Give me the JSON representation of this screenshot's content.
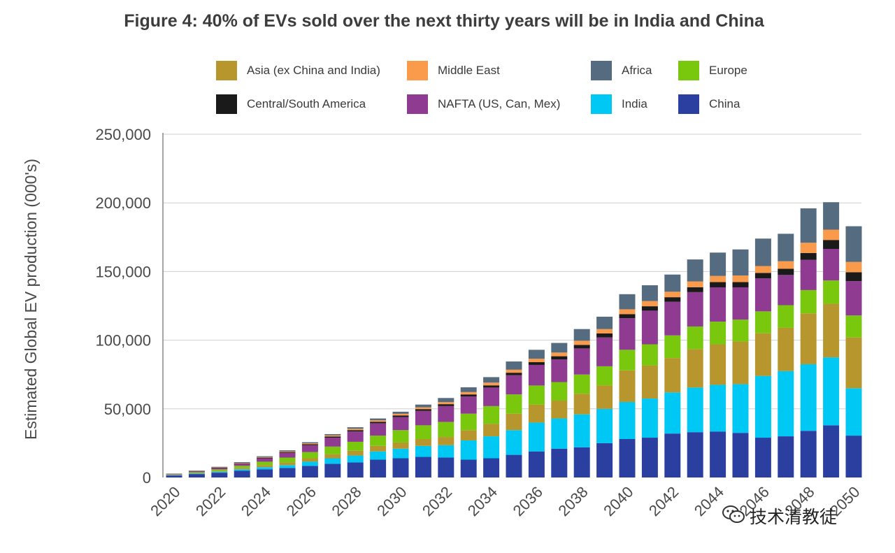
{
  "chart_data": {
    "type": "bar",
    "stacked": true,
    "title": "Figure 4: 40% of EVs sold over the next thirty years will be in India and China",
    "ylabel": "Estimated Global EV production (000's)",
    "xlabel": "",
    "ylim": [
      0,
      250000
    ],
    "yticks": [
      "0",
      "50,000",
      "100,000",
      "150,000",
      "200,000",
      "250,000"
    ],
    "grid": true,
    "legend_position": "top",
    "xtick_labels": [
      "2020",
      "2022",
      "2024",
      "2026",
      "2028",
      "2030",
      "2032",
      "2034",
      "2036",
      "2038",
      "2040",
      "2042",
      "2044",
      "2046",
      "2048",
      "2050"
    ],
    "categories": [
      "2020",
      "2021",
      "2022",
      "2023",
      "2024",
      "2025",
      "2026",
      "2027",
      "2028",
      "2029",
      "2030",
      "2031",
      "2032",
      "2033",
      "2034",
      "2035",
      "2036",
      "2037",
      "2038",
      "2039",
      "2040",
      "2041",
      "2042",
      "2043",
      "2044",
      "2045",
      "2046",
      "2047",
      "2048",
      "2049",
      "2050"
    ],
    "series": [
      {
        "name": "China",
        "color": "#2b3fa0",
        "values": [
          1500,
          2500,
          3500,
          5000,
          6000,
          7000,
          8500,
          10000,
          11000,
          13000,
          14000,
          15000,
          14500,
          13000,
          14000,
          16500,
          19000,
          21000,
          22000,
          25000,
          28000,
          29000,
          32000,
          33000,
          33500,
          32500,
          29000,
          30000,
          34000,
          38000,
          30500
        ]
      },
      {
        "name": "India",
        "color": "#00c8f5",
        "values": [
          200,
          400,
          700,
          1000,
          1500,
          2000,
          3000,
          4000,
          5000,
          6000,
          7000,
          8000,
          9000,
          14000,
          16000,
          18000,
          21000,
          22000,
          24000,
          25000,
          27000,
          28500,
          30000,
          32500,
          34000,
          35500,
          45000,
          47500,
          48500,
          49500,
          34500
        ]
      },
      {
        "name": "Asia (ex China and India)",
        "color": "#b8962e",
        "values": [
          200,
          400,
          700,
          1000,
          1500,
          2000,
          2500,
          3000,
          3500,
          4000,
          4500,
          5000,
          6000,
          7500,
          9000,
          12000,
          13000,
          13000,
          15000,
          17000,
          23000,
          24000,
          25000,
          28000,
          29500,
          31000,
          31000,
          31500,
          37000,
          39000,
          37000
        ]
      },
      {
        "name": "Europe",
        "color": "#79c80e",
        "values": [
          300,
          600,
          1000,
          1500,
          2500,
          3500,
          4500,
          5500,
          6500,
          7500,
          9000,
          10000,
          11000,
          12000,
          13000,
          14000,
          14000,
          13500,
          14000,
          14000,
          15000,
          15500,
          16500,
          16500,
          16500,
          16000,
          16000,
          16500,
          17000,
          17000,
          16000
        ]
      },
      {
        "name": "NAFTA (US, Can, Mex)",
        "color": "#8e3b91",
        "values": [
          300,
          600,
          1000,
          1500,
          2500,
          3500,
          5000,
          6500,
          7500,
          9000,
          9500,
          10500,
          11500,
          12500,
          13500,
          14000,
          15000,
          16500,
          19000,
          21000,
          23000,
          24500,
          24500,
          25000,
          25000,
          23500,
          24000,
          22000,
          22000,
          23000,
          25000
        ]
      },
      {
        "name": "Central/South America",
        "color": "#1a1a1a",
        "values": [
          100,
          150,
          250,
          350,
          450,
          550,
          700,
          850,
          1000,
          1100,
          1200,
          1300,
          1400,
          1500,
          1600,
          1800,
          2000,
          2300,
          2600,
          2900,
          3000,
          3200,
          3300,
          3600,
          3800,
          3800,
          4000,
          4500,
          5000,
          6500,
          6500
        ]
      },
      {
        "name": "Middle East",
        "color": "#f99b4a",
        "values": [
          100,
          150,
          250,
          350,
          450,
          550,
          700,
          850,
          1000,
          1100,
          1200,
          1300,
          1500,
          1700,
          2000,
          2200,
          2500,
          2700,
          3000,
          3200,
          3500,
          3800,
          4000,
          4200,
          4500,
          4800,
          5000,
          5500,
          7500,
          7500,
          7500
        ]
      },
      {
        "name": "Africa",
        "color": "#546b80",
        "values": [
          200,
          300,
          400,
          500,
          600,
          700,
          800,
          900,
          1100,
          1300,
          1500,
          2000,
          3000,
          3500,
          4000,
          6000,
          6500,
          7000,
          8500,
          9000,
          11000,
          11500,
          12500,
          16000,
          17000,
          19000,
          20000,
          20000,
          25000,
          20000,
          26000
        ]
      }
    ]
  },
  "legend": {
    "items": [
      {
        "label": "Asia (ex China and India)",
        "color": "#b8962e"
      },
      {
        "label": "Middle East",
        "color": "#f99b4a"
      },
      {
        "label": "Africa",
        "color": "#546b80"
      },
      {
        "label": "Europe",
        "color": "#79c80e"
      },
      {
        "label": "Central/South America",
        "color": "#1a1a1a"
      },
      {
        "label": "NAFTA (US, Can, Mex)",
        "color": "#8e3b91"
      },
      {
        "label": "India",
        "color": "#00c8f5"
      },
      {
        "label": "China",
        "color": "#2b3fa0"
      }
    ]
  },
  "watermark": {
    "text": "技术清教徒",
    "icon": "wechat-icon"
  }
}
